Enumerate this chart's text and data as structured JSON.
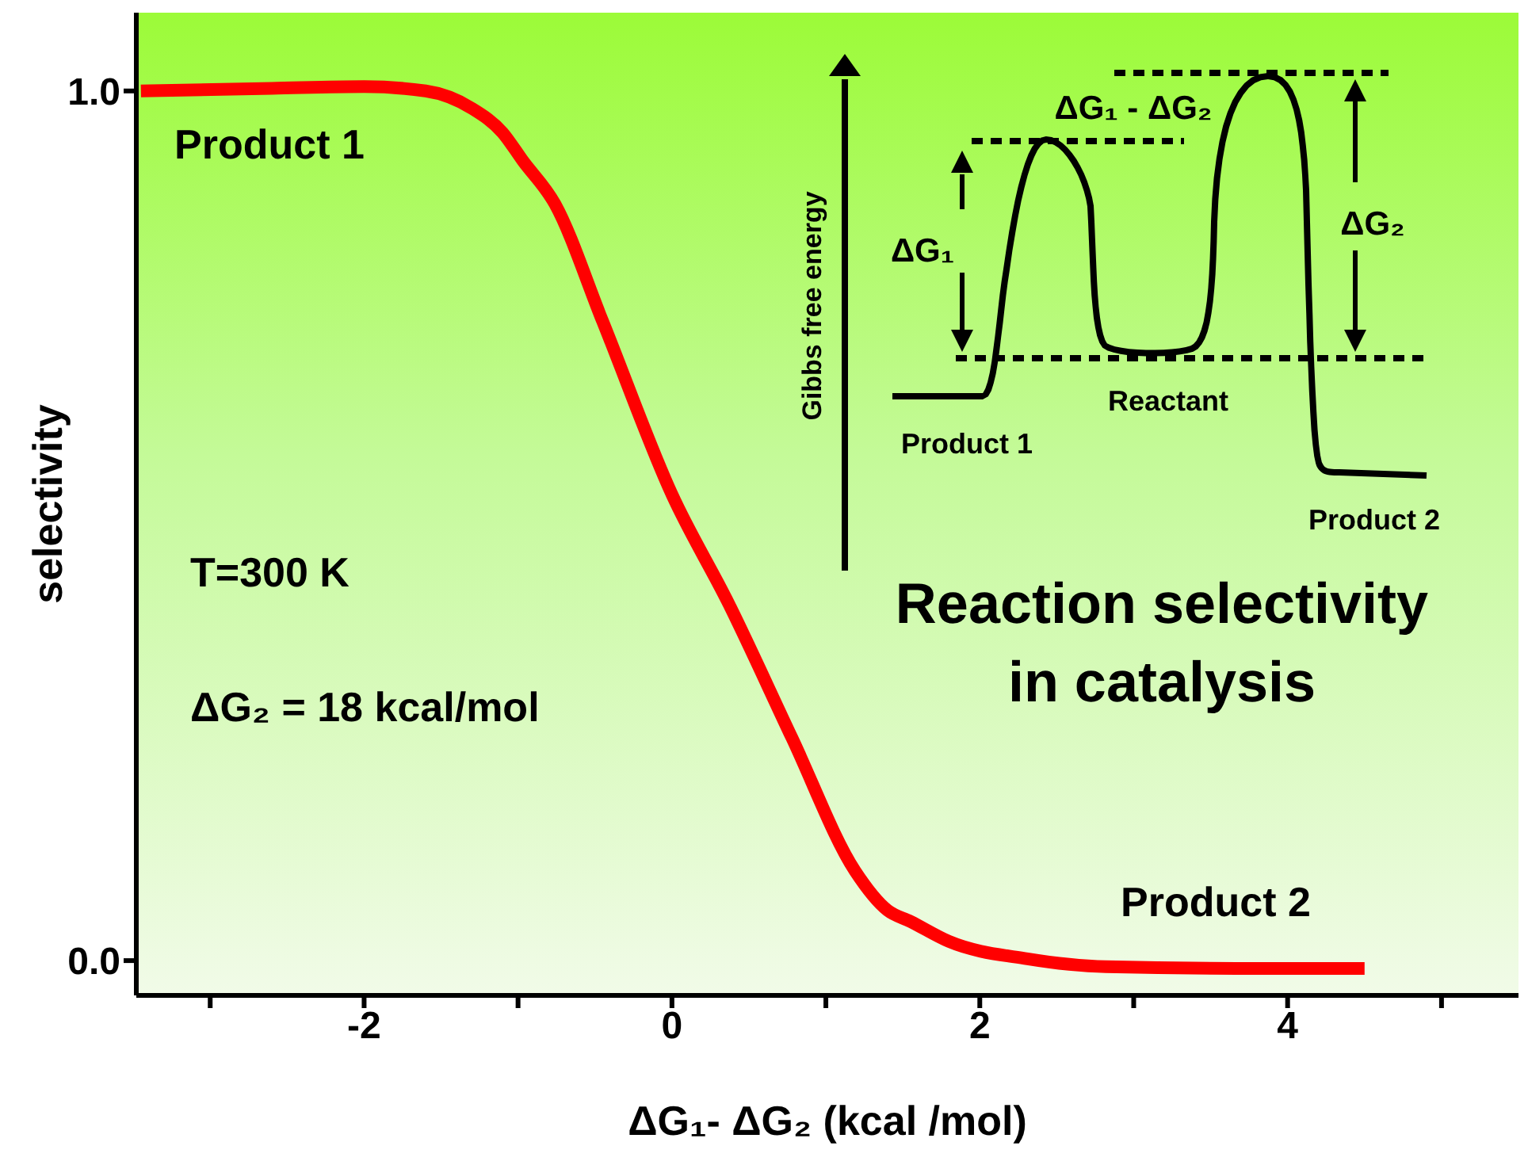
{
  "chart_data": {
    "type": "line",
    "xlabel": "ΔG₁- ΔG₂ (kcal /mol)",
    "ylabel": "selectivity",
    "x": [
      -3.45,
      -2.6,
      -2,
      -1.6,
      -1.3,
      -1.1,
      -0.97,
      -0.76,
      -0.45,
      0,
      0.37,
      0.78,
      1.19,
      1.4,
      1.55,
      1.8,
      2.31,
      2.82,
      3.85,
      4.5
    ],
    "series": [
      {
        "color": "#ff0000",
        "values": [
          1.0,
          1.003,
          1.005,
          1.0,
          0.98,
          0.952,
          0.92,
          0.87,
          0.735,
          0.536,
          0.41,
          0.256,
          0.103,
          0.058,
          0.045,
          0.022,
          0.002,
          -0.007,
          -0.009,
          -0.009
        ]
      }
    ],
    "xlim": [
      -3.48,
      5.5
    ],
    "ylim": [
      -0.04,
      1.09
    ],
    "xticks": [
      {
        "value": -3,
        "label": null
      },
      -2,
      {
        "value": -1,
        "label": null
      },
      0,
      {
        "value": 1,
        "label": null
      },
      2,
      {
        "value": 3,
        "label": null
      },
      4,
      {
        "value": 5,
        "label": null
      }
    ],
    "yticks": [
      {
        "value": 0,
        "label": "0.0"
      },
      {
        "value": 1,
        "label": "1.0"
      }
    ],
    "marker": "none",
    "line_style": "solid",
    "annotations": [
      "Product 1",
      "Product 2",
      "T=300 K",
      "ΔG₂ = 18 kcal/mol",
      "Reaction selectivity in catalysis",
      "Gibbs free energy",
      "ΔG₁ - ΔG₂",
      "ΔG₁",
      "ΔG₂",
      "Reactant",
      "Product 1",
      "Product 2"
    ]
  }
}
